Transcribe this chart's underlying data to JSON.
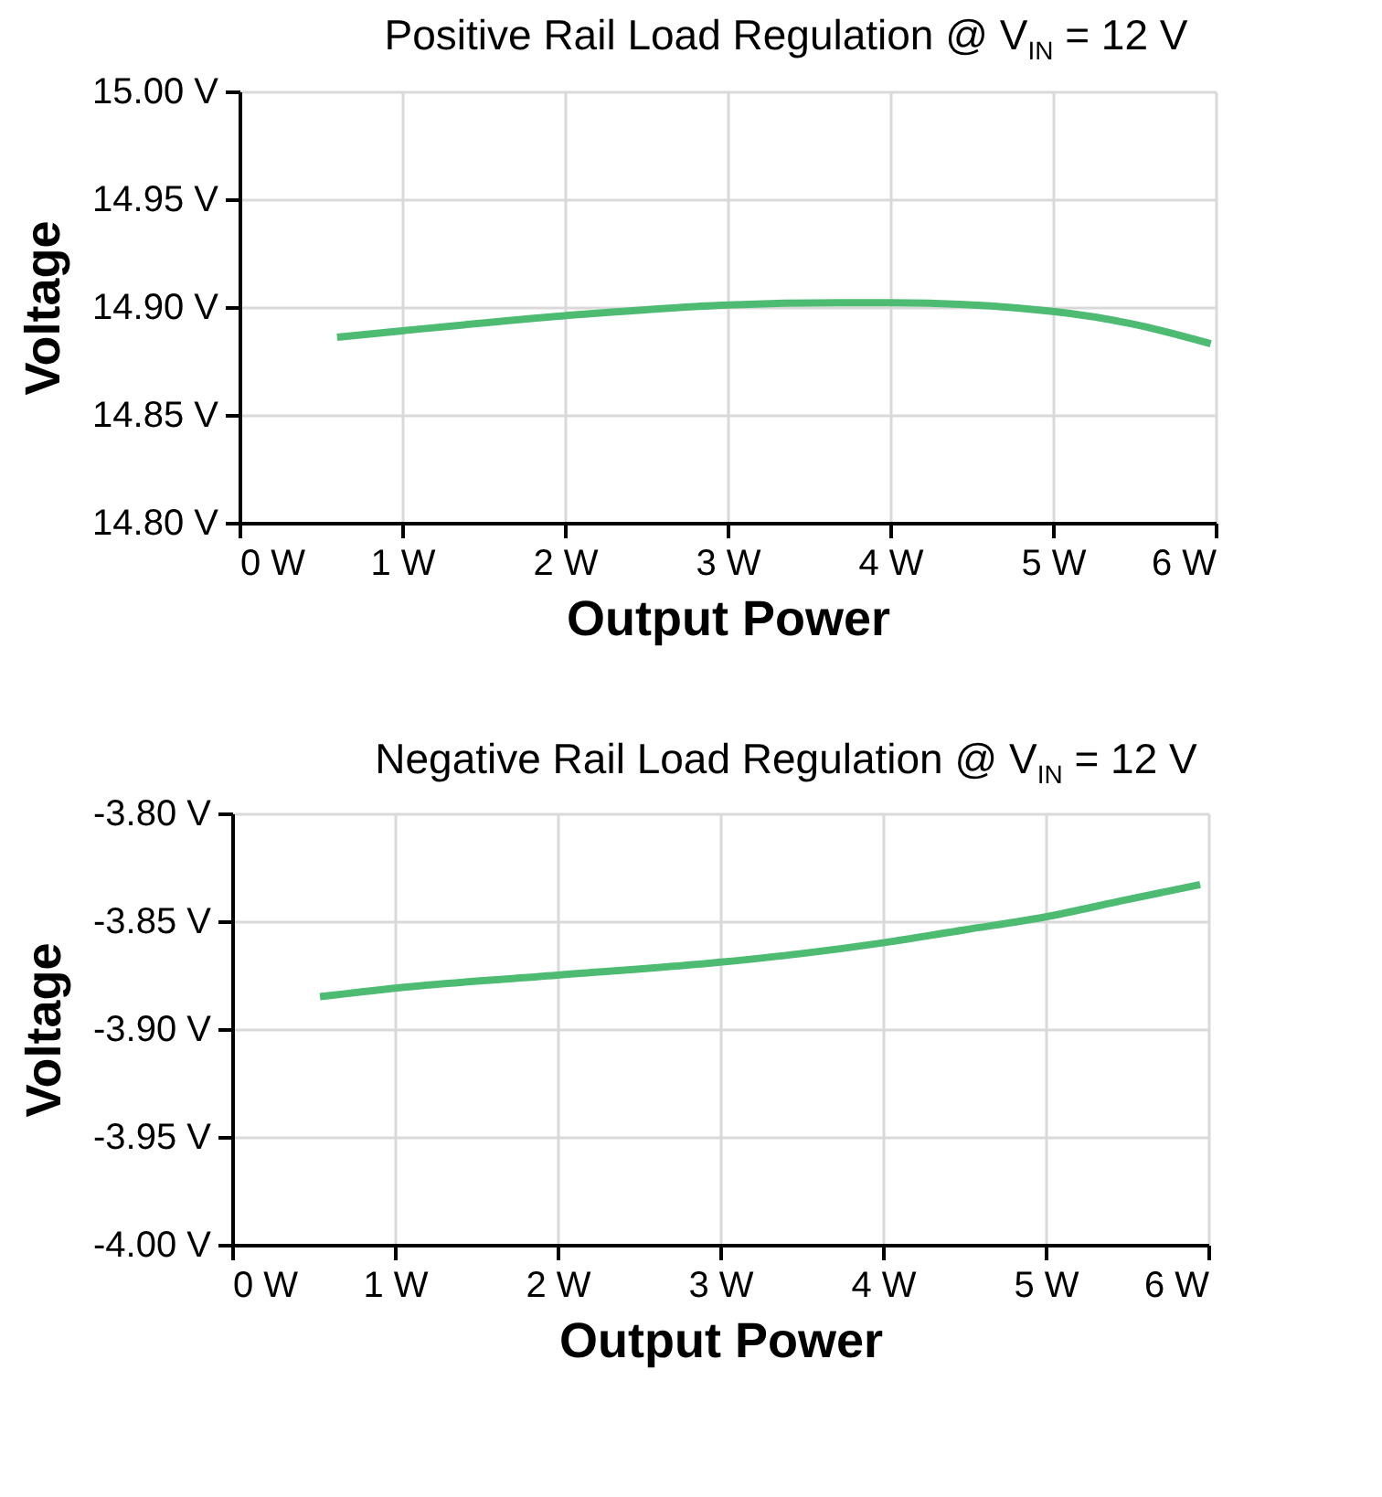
{
  "chart_data": [
    {
      "type": "line",
      "title": "Positive Rail Load Regulation @ V$_{IN}$ = 12 V",
      "xlabel": "Output Power",
      "ylabel": "Voltage",
      "grid": true,
      "x": [
        0.6,
        1,
        2,
        3,
        3.7,
        4,
        5,
        5.5,
        5.97
      ],
      "series": [
        {
          "color": "#4dbb72",
          "values": [
            14.886,
            14.889,
            14.896,
            14.901,
            14.902,
            14.902,
            14.898,
            14.892,
            14.883
          ]
        }
      ],
      "xlim": [
        0,
        6
      ],
      "xticks": [
        {
          "value": 0,
          "label": "0 W"
        },
        {
          "value": 1,
          "label": "1 W"
        },
        {
          "value": 2,
          "label": "2 W"
        },
        {
          "value": 3,
          "label": "3 W"
        },
        {
          "value": 4,
          "label": "4 W"
        },
        {
          "value": 5,
          "label": "5 W"
        },
        {
          "value": 6,
          "label": "6 W"
        }
      ],
      "ylim": [
        14.8,
        15.0
      ],
      "yticks": [
        {
          "value": 14.8,
          "label": "14.80 V"
        },
        {
          "value": 14.85,
          "label": "14.85 V"
        },
        {
          "value": 14.9,
          "label": "14.90 V"
        },
        {
          "value": 14.95,
          "label": "14.95 V"
        },
        {
          "value": 15.0,
          "label": "15.00 V"
        }
      ]
    },
    {
      "type": "line",
      "title": "Negative Rail Load Regulation @ V$_{IN}$ = 12 V",
      "xlabel": "Output Power",
      "ylabel": "Voltage",
      "grid": true,
      "x": [
        0.54,
        1,
        2,
        3,
        3.5,
        4,
        4.5,
        5,
        5.5,
        5.95
      ],
      "series": [
        {
          "color": "#4dbb72",
          "values": [
            -3.885,
            -3.881,
            -3.875,
            -3.869,
            -3.865,
            -3.86,
            -3.854,
            -3.848,
            -3.84,
            -3.833
          ]
        }
      ],
      "xlim": [
        0,
        6
      ],
      "xticks": [
        {
          "value": 0,
          "label": "0 W"
        },
        {
          "value": 1,
          "label": "1 W"
        },
        {
          "value": 2,
          "label": "2 W"
        },
        {
          "value": 3,
          "label": "3 W"
        },
        {
          "value": 4,
          "label": "4 W"
        },
        {
          "value": 5,
          "label": "5 W"
        },
        {
          "value": 6,
          "label": "6 W"
        }
      ],
      "ylim": [
        -4.0,
        -3.8
      ],
      "yticks": [
        {
          "value": -4.0,
          "label": "-4.00 V"
        },
        {
          "value": -3.95,
          "label": "-3.95 V"
        },
        {
          "value": -3.9,
          "label": "-3.90 V"
        },
        {
          "value": -3.85,
          "label": "-3.85 V"
        },
        {
          "value": -3.8,
          "label": "-3.80 V"
        }
      ]
    }
  ]
}
